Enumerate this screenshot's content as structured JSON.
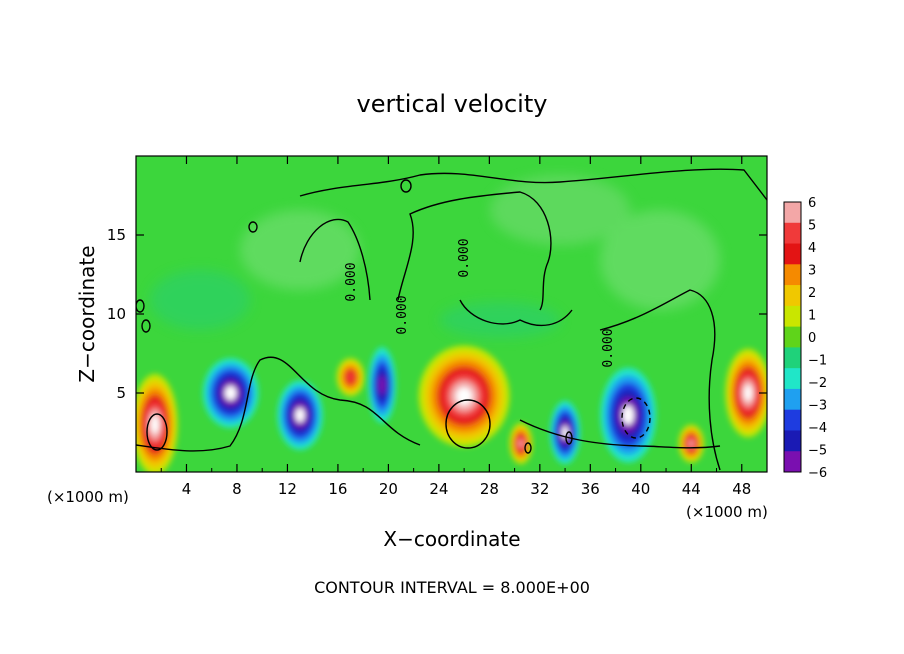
{
  "chart_data": {
    "type": "heatmap",
    "title": "vertical velocity",
    "xlabel": "X−coordinate",
    "ylabel": "Z−coordinate",
    "x_unit_left": "(×1000 m)",
    "x_unit_right": "(×1000 m)",
    "x_ticks": [
      "4",
      "8",
      "12",
      "16",
      "20",
      "24",
      "28",
      "32",
      "36",
      "40",
      "44",
      "48"
    ],
    "x_tick_values": [
      4,
      8,
      12,
      16,
      20,
      24,
      28,
      32,
      36,
      40,
      44,
      48
    ],
    "y_ticks": [
      "5",
      "10",
      "15"
    ],
    "y_tick_values": [
      5,
      10,
      15
    ],
    "xlim": [
      0,
      50
    ],
    "ylim": [
      0,
      20
    ],
    "footer": "CONTOUR INTERVAL = 8.000E+00",
    "contour_label": "0.000",
    "colorbar": {
      "labels": [
        "6",
        "5",
        "4",
        "3",
        "2",
        "1",
        "0",
        "−1",
        "−2",
        "−3",
        "−4",
        "−5",
        "−6"
      ],
      "colors": [
        "#f3a7a7",
        "#f03a3a",
        "#e31414",
        "#f58a00",
        "#f0c800",
        "#c9e600",
        "#5fd41a",
        "#1fd27a",
        "#20e6c8",
        "#1fa0f0",
        "#1e3ce0",
        "#1a1ab4",
        "#7a0fb0"
      ]
    },
    "background_color": "#3cd63c",
    "features": [
      {
        "type": "updraft",
        "x": 1.5,
        "z": 3.0,
        "rx": 1.8,
        "rz": 3.2,
        "peak": 6
      },
      {
        "type": "downdraft",
        "x": 7.5,
        "z": 5.0,
        "rx": 2.2,
        "rz": 2.2,
        "peak": -5
      },
      {
        "type": "downdraft",
        "x": 13.0,
        "z": 3.6,
        "rx": 1.8,
        "rz": 2.2,
        "peak": -6
      },
      {
        "type": "updraft",
        "x": 17.0,
        "z": 6.0,
        "rx": 1.1,
        "rz": 1.2,
        "peak": 4
      },
      {
        "type": "downdraft",
        "x": 19.5,
        "z": 5.5,
        "rx": 1.1,
        "rz": 2.4,
        "peak": -4
      },
      {
        "type": "updraft",
        "x": 26.0,
        "z": 4.8,
        "rx": 3.6,
        "rz": 3.2,
        "peak": 6
      },
      {
        "type": "updraft",
        "x": 30.5,
        "z": 1.8,
        "rx": 0.9,
        "rz": 1.3,
        "peak": 5
      },
      {
        "type": "downdraft",
        "x": 34.0,
        "z": 2.5,
        "rx": 1.2,
        "rz": 2.0,
        "peak": -5
      },
      {
        "type": "downdraft",
        "x": 39.0,
        "z": 3.6,
        "rx": 2.2,
        "rz": 3.0,
        "peak": -5
      },
      {
        "type": "updraft",
        "x": 44.0,
        "z": 1.8,
        "rx": 1.0,
        "rz": 1.2,
        "peak": 5
      },
      {
        "type": "updraft",
        "x": 48.5,
        "z": 5.0,
        "rx": 1.8,
        "rz": 2.8,
        "peak": 6
      }
    ]
  }
}
